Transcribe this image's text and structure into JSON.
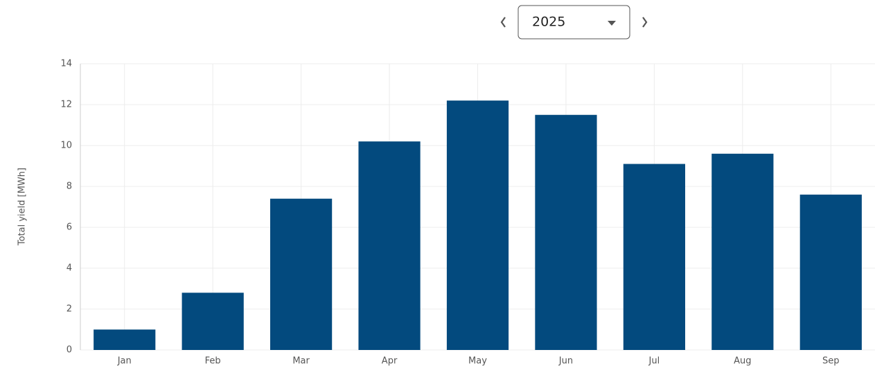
{
  "controls": {
    "year": "2025"
  },
  "chart_data": {
    "type": "bar",
    "y_label": "Total yield [MWh]",
    "categories": [
      "Jan",
      "Feb",
      "Mar",
      "Apr",
      "May",
      "Jun",
      "Jul",
      "Aug",
      "Sep"
    ],
    "values": [
      1.0,
      2.8,
      7.4,
      10.2,
      12.2,
      11.5,
      9.1,
      9.6,
      7.6
    ],
    "color": "#034a7e",
    "ylim": [
      0,
      14
    ],
    "yticks": [
      0,
      2,
      4,
      6,
      8,
      10,
      12,
      14
    ],
    "grid": true
  }
}
